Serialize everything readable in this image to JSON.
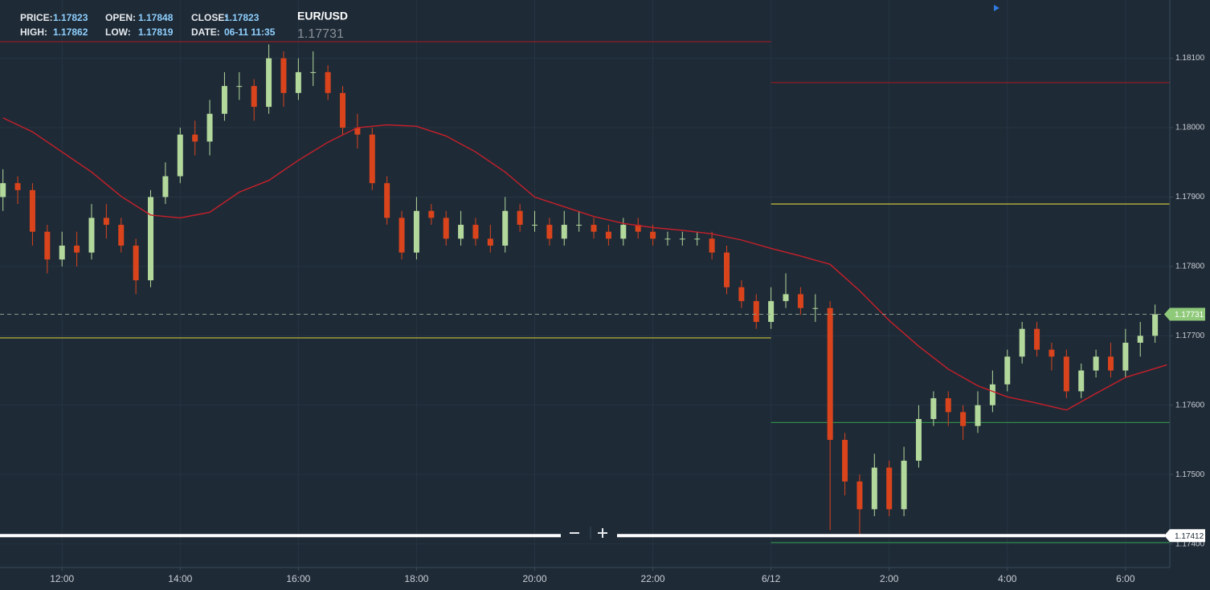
{
  "chart_data": {
    "type": "candlestick",
    "symbol": "EUR/USD",
    "last_price": 1.17731,
    "info": [
      {
        "label": "PRICE:",
        "value": 1.17823
      },
      {
        "label": "OPEN:",
        "value": 1.17848
      },
      {
        "label": "CLOSE:",
        "value": 1.17823
      },
      {
        "label": "HIGH:",
        "value": 1.17862
      },
      {
        "label": "LOW:",
        "value": 1.17819
      },
      {
        "label": "DATE:",
        "value": "06-11 11:35"
      }
    ],
    "up_color": "#b3d89c",
    "down_color": "#d9441d",
    "candles": {
      "x": [
        11,
        11.25,
        11.5,
        11.75,
        12,
        12.25,
        12.5,
        12.75,
        13,
        13.25,
        13.5,
        13.75,
        14,
        14.25,
        14.5,
        14.75,
        15,
        15.25,
        15.5,
        15.75,
        16,
        16.25,
        16.5,
        16.75,
        17,
        17.25,
        17.5,
        17.75,
        18,
        18.25,
        18.5,
        18.75,
        19,
        19.25,
        19.5,
        19.75,
        20,
        20.25,
        20.5,
        20.75,
        21,
        21.25,
        21.5,
        21.75,
        22,
        22.25,
        22.5,
        22.75,
        23,
        23.25,
        23.5,
        23.75,
        24,
        24.25,
        24.5,
        24.75,
        25,
        25.25,
        25.5,
        25.75,
        26,
        26.25,
        26.5,
        26.75,
        27,
        27.25,
        27.5,
        27.75,
        28,
        28.25,
        28.5,
        28.75,
        29,
        29.25,
        29.5,
        29.75,
        30,
        30.25,
        30.5
      ],
      "open": [
        1.179,
        1.1792,
        1.1791,
        1.1785,
        1.1781,
        1.1783,
        1.1782,
        1.1787,
        1.1786,
        1.1783,
        1.1778,
        1.179,
        1.1793,
        1.1799,
        1.1798,
        1.1802,
        1.1806,
        1.1806,
        1.1803,
        1.181,
        1.1805,
        1.1808,
        1.1808,
        1.1805,
        1.18,
        1.1799,
        1.1792,
        1.1787,
        1.1782,
        1.1788,
        1.1787,
        1.1784,
        1.1786,
        1.1784,
        1.1783,
        1.1788,
        1.1786,
        1.1786,
        1.1784,
        1.1786,
        1.1786,
        1.1785,
        1.1784,
        1.1786,
        1.1785,
        1.1784,
        1.1784,
        1.1784,
        1.1784,
        1.1782,
        1.1777,
        1.1775,
        1.1772,
        1.1775,
        1.1776,
        1.1774,
        1.1774,
        1.1755,
        1.1749,
        1.1745,
        1.1751,
        1.1745,
        1.1752,
        1.1758,
        1.1761,
        1.1759,
        1.1757,
        1.176,
        1.1763,
        1.1767,
        1.1771,
        1.1768,
        1.1767,
        1.1762,
        1.1765,
        1.1767,
        1.1765,
        1.1769,
        1.177
      ],
      "high": [
        1.1794,
        1.1793,
        1.1792,
        1.1786,
        1.1785,
        1.1785,
        1.1789,
        1.1789,
        1.1787,
        1.1784,
        1.1791,
        1.1795,
        1.18,
        1.1801,
        1.1804,
        1.1808,
        1.1808,
        1.1807,
        1.1812,
        1.1811,
        1.181,
        1.1811,
        1.1809,
        1.1806,
        1.1802,
        1.18,
        1.1793,
        1.1788,
        1.179,
        1.1789,
        1.1788,
        1.1788,
        1.1787,
        1.1786,
        1.179,
        1.1789,
        1.1788,
        1.1787,
        1.1788,
        1.1788,
        1.1787,
        1.1786,
        1.1787,
        1.1787,
        1.1786,
        1.1785,
        1.1785,
        1.1785,
        1.1785,
        1.1783,
        1.1778,
        1.1776,
        1.1777,
        1.1779,
        1.1777,
        1.1776,
        1.1775,
        1.1756,
        1.175,
        1.1753,
        1.1752,
        1.1754,
        1.176,
        1.1762,
        1.1762,
        1.176,
        1.1762,
        1.1765,
        1.1768,
        1.1772,
        1.1772,
        1.1769,
        1.1768,
        1.1766,
        1.1768,
        1.1769,
        1.1771,
        1.1772,
        1.17745
      ],
      "low": [
        1.1788,
        1.1789,
        1.1783,
        1.1779,
        1.178,
        1.178,
        1.1781,
        1.1784,
        1.1782,
        1.1776,
        1.1777,
        1.1789,
        1.1792,
        1.1796,
        1.1796,
        1.1801,
        1.1804,
        1.1801,
        1.1802,
        1.1803,
        1.1804,
        1.1806,
        1.1804,
        1.1799,
        1.1797,
        1.1791,
        1.1786,
        1.1781,
        1.1781,
        1.1786,
        1.1783,
        1.1783,
        1.1783,
        1.1782,
        1.1782,
        1.1785,
        1.1785,
        1.1783,
        1.1783,
        1.1785,
        1.1784,
        1.1783,
        1.1783,
        1.1784,
        1.1783,
        1.1783,
        1.1783,
        1.1783,
        1.1781,
        1.1776,
        1.1774,
        1.1771,
        1.1771,
        1.1774,
        1.1773,
        1.1772,
        1.1742,
        1.1747,
        1.1741,
        1.1744,
        1.1744,
        1.1744,
        1.1751,
        1.1757,
        1.1757,
        1.1755,
        1.1756,
        1.1759,
        1.1762,
        1.1766,
        1.1767,
        1.1765,
        1.1761,
        1.1761,
        1.1764,
        1.1764,
        1.1764,
        1.1767,
        1.1769
      ],
      "close": [
        1.1792,
        1.1791,
        1.1785,
        1.1781,
        1.1783,
        1.1782,
        1.1787,
        1.1786,
        1.1783,
        1.1778,
        1.179,
        1.1793,
        1.1799,
        1.1798,
        1.1802,
        1.1806,
        1.1806,
        1.1803,
        1.181,
        1.1805,
        1.1808,
        1.1808,
        1.1805,
        1.18,
        1.1799,
        1.1792,
        1.1787,
        1.1782,
        1.1788,
        1.1787,
        1.1784,
        1.1786,
        1.1784,
        1.1783,
        1.1788,
        1.1786,
        1.1786,
        1.1784,
        1.1786,
        1.1786,
        1.1785,
        1.1784,
        1.1786,
        1.1785,
        1.1784,
        1.1784,
        1.1784,
        1.1784,
        1.1782,
        1.1777,
        1.1775,
        1.1772,
        1.1775,
        1.1776,
        1.1774,
        1.1774,
        1.1755,
        1.1749,
        1.1745,
        1.1751,
        1.1745,
        1.1752,
        1.1758,
        1.1761,
        1.1759,
        1.1757,
        1.176,
        1.1763,
        1.1767,
        1.1771,
        1.1768,
        1.1767,
        1.1762,
        1.1765,
        1.1767,
        1.1765,
        1.1769,
        1.177,
        1.17731
      ]
    },
    "ma": {
      "color": "#c8202a",
      "x": [
        11,
        11.5,
        12,
        12.5,
        13,
        13.5,
        14,
        14.5,
        15,
        15.5,
        16,
        16.5,
        17,
        17.5,
        18,
        18.5,
        19,
        19.5,
        20,
        20.5,
        21,
        21.5,
        22,
        22.5,
        23,
        23.5,
        24,
        24.5,
        25,
        25.5,
        26,
        26.5,
        27,
        27.5,
        28,
        28.5,
        29,
        29.5,
        30,
        30.7
      ],
      "values": [
        1.18014,
        1.17994,
        1.17965,
        1.17936,
        1.17901,
        1.17874,
        1.1787,
        1.17878,
        1.17907,
        1.17924,
        1.17953,
        1.17979,
        1.18,
        1.18004,
        1.18002,
        1.17988,
        1.17965,
        1.17936,
        1.179,
        1.17886,
        1.17872,
        1.17862,
        1.17856,
        1.17852,
        1.17847,
        1.17838,
        1.17826,
        1.17815,
        1.17803,
        1.17765,
        1.17722,
        1.17685,
        1.17652,
        1.17628,
        1.17612,
        1.17603,
        1.17593,
        1.17617,
        1.1764,
        1.17658
      ]
    },
    "levels": [
      {
        "value": 1.18124,
        "color": "#8e1d25",
        "xrange": [
          10.95,
          24
        ]
      },
      {
        "value": 1.18065,
        "color": "#8e1d25",
        "xrange": [
          24,
          30.75
        ]
      },
      {
        "value": 1.1789,
        "color": "#c9c23a",
        "xrange": [
          24,
          30.75
        ]
      },
      {
        "value": 1.17697,
        "color": "#c9c23a",
        "xrange": [
          10.95,
          24
        ]
      },
      {
        "value": 1.17575,
        "color": "#2f8a4a",
        "xrange": [
          24,
          30.75
        ]
      },
      {
        "value": 1.17402,
        "color": "#2f8a4a",
        "xrange": [
          24,
          30.75
        ]
      }
    ],
    "marker_line": 1.17412,
    "xlim": [
      10.95,
      30.75
    ],
    "ylim": [
      1.17366,
      1.18184
    ],
    "xticks": [
      {
        "value": 12,
        "label": "12:00"
      },
      {
        "value": 14,
        "label": "14:00"
      },
      {
        "value": 16,
        "label": "16:00"
      },
      {
        "value": 18,
        "label": "18:00"
      },
      {
        "value": 20,
        "label": "20:00"
      },
      {
        "value": 22,
        "label": "22:00"
      },
      {
        "value": 24,
        "label": "6/12"
      },
      {
        "value": 26,
        "label": "2:00"
      },
      {
        "value": 28,
        "label": "4:00"
      },
      {
        "value": 30,
        "label": "6:00"
      }
    ],
    "yticks": [
      {
        "value": 1.174,
        "label": "1.17400"
      },
      {
        "value": 1.175,
        "label": "1.17500"
      },
      {
        "value": 1.176,
        "label": "1.17600"
      },
      {
        "value": 1.177,
        "label": "1.17700"
      },
      {
        "value": 1.178,
        "label": "1.17800"
      },
      {
        "value": 1.179,
        "label": "1.17900"
      },
      {
        "value": 1.18,
        "label": "1.18000"
      },
      {
        "value": 1.181,
        "label": "1.18100"
      }
    ],
    "grid": true
  }
}
